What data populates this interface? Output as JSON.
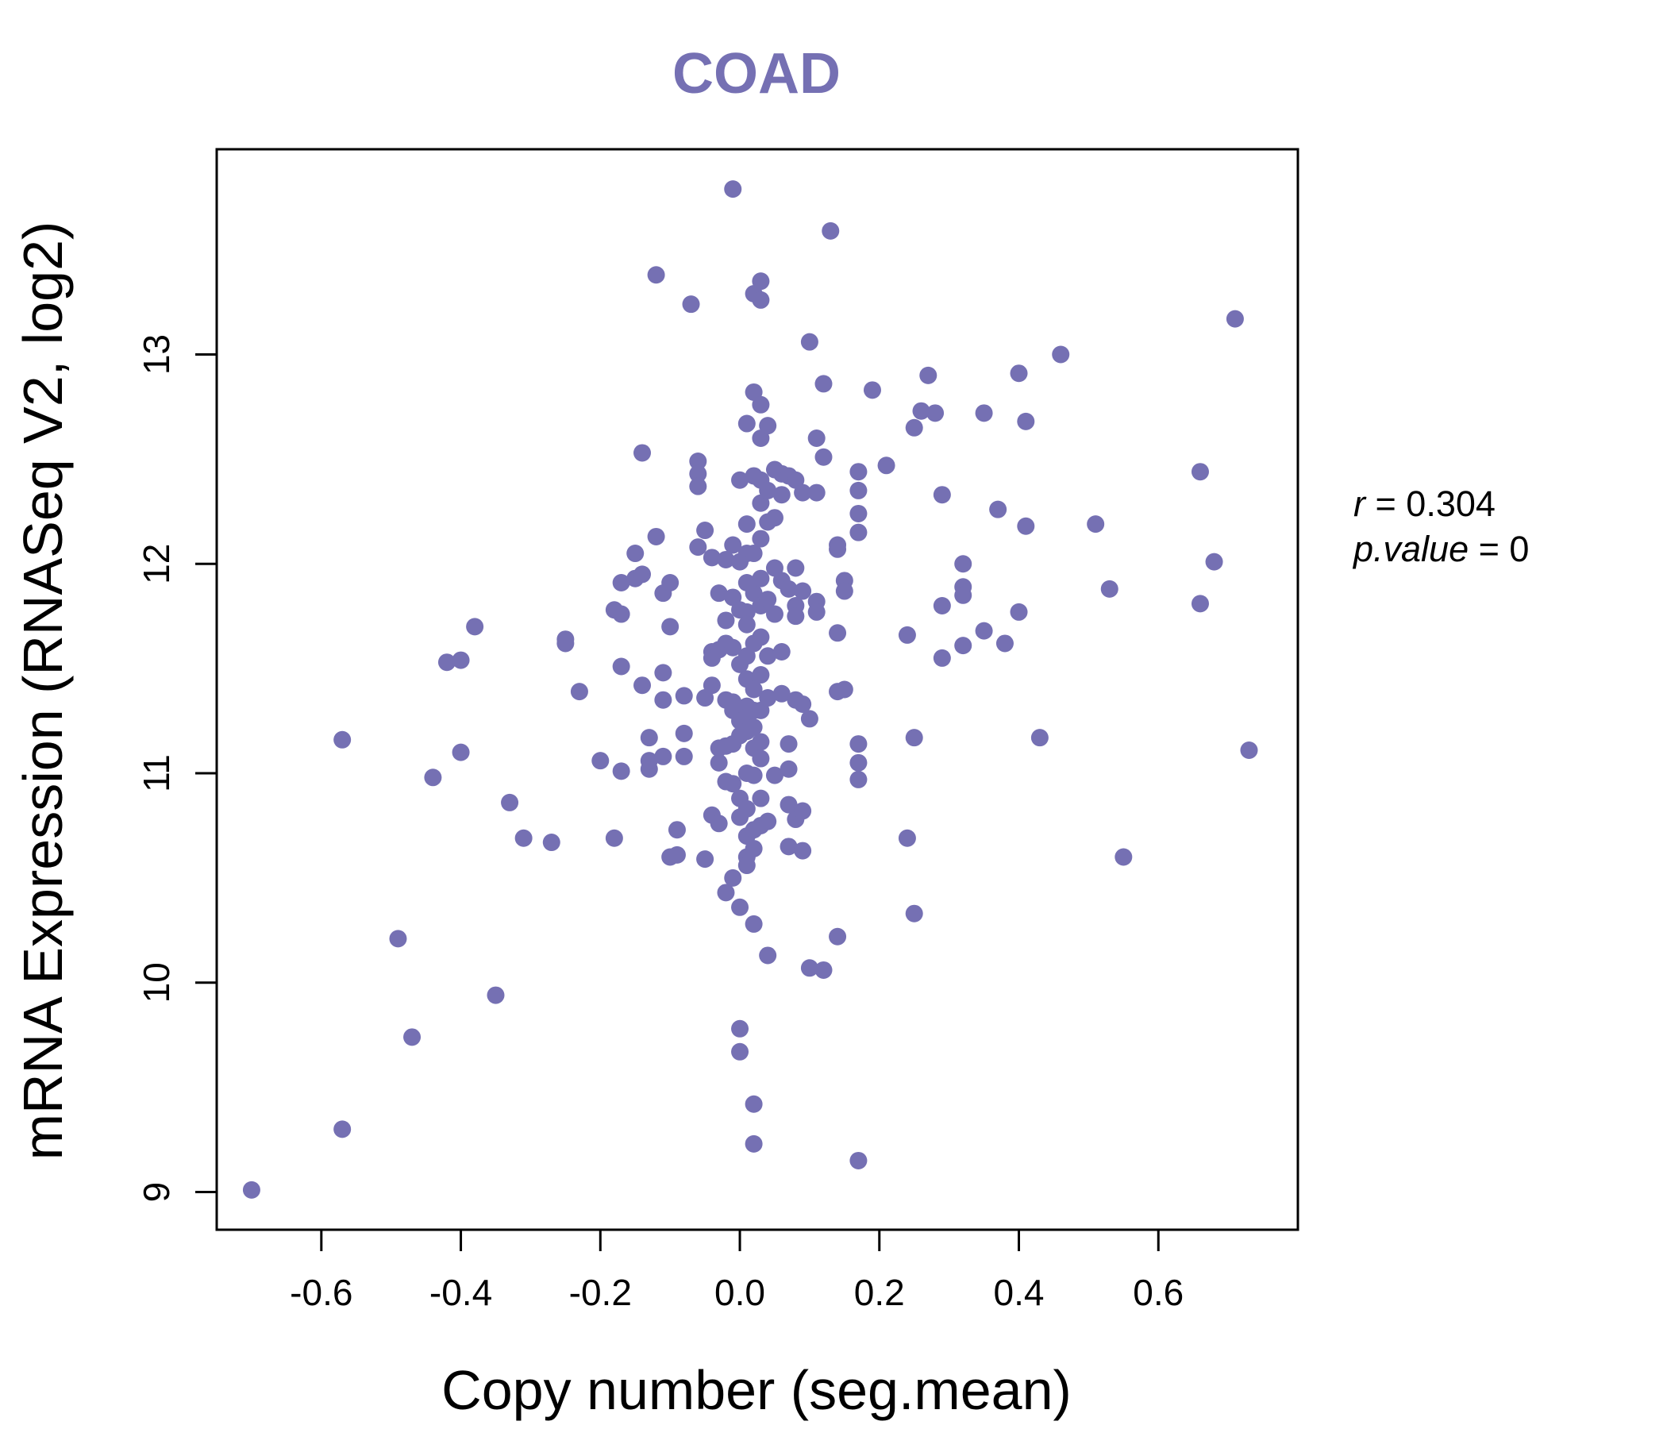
{
  "chart_data": {
    "type": "scatter",
    "title": "COAD",
    "title_color": "#7570b3",
    "point_color": "#7570b3",
    "xlabel": "Copy number (seg.mean)",
    "ylabel": "mRNA Expression (RNASeq V2, log2)",
    "xlim": [
      -0.75,
      0.8
    ],
    "ylim": [
      8.82,
      13.98
    ],
    "x_ticks": [
      "-0.6",
      "-0.4",
      "-0.2",
      "0.0",
      "0.2",
      "0.4",
      "0.6"
    ],
    "x_tick_values": [
      -0.6,
      -0.4,
      -0.2,
      0.0,
      0.2,
      0.4,
      0.6
    ],
    "y_ticks": [
      "9",
      "10",
      "11",
      "12",
      "13"
    ],
    "y_tick_values": [
      9,
      10,
      11,
      12,
      13
    ],
    "grid": false,
    "stats": {
      "r_label": "r",
      "r_value": "0.304",
      "p_label": "p.value",
      "p_value": "0"
    },
    "points": [
      [
        -0.7,
        9.01
      ],
      [
        -0.57,
        9.3
      ],
      [
        -0.57,
        11.16
      ],
      [
        -0.49,
        10.21
      ],
      [
        -0.47,
        9.74
      ],
      [
        -0.44,
        10.98
      ],
      [
        -0.42,
        11.53
      ],
      [
        -0.4,
        11.54
      ],
      [
        -0.4,
        11.1
      ],
      [
        -0.38,
        11.7
      ],
      [
        -0.35,
        9.94
      ],
      [
        -0.33,
        10.86
      ],
      [
        -0.31,
        10.69
      ],
      [
        -0.27,
        10.67
      ],
      [
        -0.25,
        11.64
      ],
      [
        -0.25,
        11.62
      ],
      [
        -0.23,
        11.39
      ],
      [
        -0.2,
        11.06
      ],
      [
        -0.18,
        10.69
      ],
      [
        -0.18,
        11.78
      ],
      [
        -0.17,
        11.91
      ],
      [
        -0.17,
        11.76
      ],
      [
        -0.17,
        11.51
      ],
      [
        -0.17,
        11.01
      ],
      [
        -0.15,
        12.05
      ],
      [
        -0.15,
        11.93
      ],
      [
        -0.14,
        11.95
      ],
      [
        -0.14,
        12.53
      ],
      [
        -0.14,
        11.42
      ],
      [
        -0.13,
        11.17
      ],
      [
        -0.13,
        11.02
      ],
      [
        -0.13,
        11.06
      ],
      [
        -0.12,
        12.13
      ],
      [
        -0.12,
        13.38
      ],
      [
        -0.11,
        11.86
      ],
      [
        -0.11,
        11.35
      ],
      [
        -0.11,
        11.08
      ],
      [
        -0.11,
        11.48
      ],
      [
        -0.1,
        11.91
      ],
      [
        -0.1,
        11.7
      ],
      [
        -0.1,
        10.6
      ],
      [
        -0.09,
        10.73
      ],
      [
        -0.09,
        10.61
      ],
      [
        -0.08,
        11.19
      ],
      [
        -0.08,
        11.08
      ],
      [
        -0.08,
        11.37
      ],
      [
        -0.07,
        13.24
      ],
      [
        -0.06,
        12.49
      ],
      [
        -0.06,
        12.43
      ],
      [
        -0.06,
        12.37
      ],
      [
        -0.06,
        12.08
      ],
      [
        -0.05,
        11.36
      ],
      [
        -0.05,
        10.59
      ],
      [
        -0.05,
        12.16
      ],
      [
        -0.04,
        12.03
      ],
      [
        -0.04,
        11.58
      ],
      [
        -0.04,
        11.55
      ],
      [
        -0.04,
        11.42
      ],
      [
        -0.04,
        10.8
      ],
      [
        -0.03,
        11.86
      ],
      [
        -0.03,
        11.59
      ],
      [
        -0.03,
        11.12
      ],
      [
        -0.03,
        11.05
      ],
      [
        -0.03,
        10.76
      ],
      [
        -0.02,
        12.02
      ],
      [
        -0.02,
        11.73
      ],
      [
        -0.02,
        11.62
      ],
      [
        -0.02,
        11.35
      ],
      [
        -0.02,
        11.13
      ],
      [
        -0.02,
        10.96
      ],
      [
        -0.02,
        10.43
      ],
      [
        -0.01,
        13.79
      ],
      [
        -0.01,
        12.09
      ],
      [
        -0.01,
        11.84
      ],
      [
        -0.01,
        11.6
      ],
      [
        -0.01,
        11.34
      ],
      [
        -0.01,
        11.3
      ],
      [
        -0.01,
        11.14
      ],
      [
        -0.01,
        10.95
      ],
      [
        -0.01,
        10.5
      ],
      [
        0.0,
        12.4
      ],
      [
        0.0,
        12.01
      ],
      [
        0.0,
        11.78
      ],
      [
        0.0,
        11.52
      ],
      [
        0.0,
        11.25
      ],
      [
        0.0,
        11.18
      ],
      [
        0.0,
        10.88
      ],
      [
        0.0,
        10.79
      ],
      [
        0.0,
        10.36
      ],
      [
        0.0,
        9.78
      ],
      [
        0.0,
        9.67
      ],
      [
        0.01,
        12.67
      ],
      [
        0.01,
        12.19
      ],
      [
        0.01,
        12.05
      ],
      [
        0.01,
        11.91
      ],
      [
        0.01,
        11.77
      ],
      [
        0.01,
        11.71
      ],
      [
        0.01,
        11.56
      ],
      [
        0.01,
        11.45
      ],
      [
        0.01,
        11.32
      ],
      [
        0.01,
        11.27
      ],
      [
        0.01,
        11.2
      ],
      [
        0.01,
        11.0
      ],
      [
        0.01,
        10.83
      ],
      [
        0.01,
        10.7
      ],
      [
        0.01,
        10.6
      ],
      [
        0.01,
        10.56
      ],
      [
        0.02,
        13.29
      ],
      [
        0.02,
        12.82
      ],
      [
        0.02,
        12.42
      ],
      [
        0.02,
        12.05
      ],
      [
        0.02,
        11.86
      ],
      [
        0.02,
        11.62
      ],
      [
        0.02,
        11.4
      ],
      [
        0.02,
        11.3
      ],
      [
        0.02,
        11.22
      ],
      [
        0.02,
        11.12
      ],
      [
        0.02,
        10.99
      ],
      [
        0.02,
        10.73
      ],
      [
        0.02,
        10.64
      ],
      [
        0.02,
        10.28
      ],
      [
        0.02,
        9.42
      ],
      [
        0.02,
        9.23
      ],
      [
        0.03,
        13.35
      ],
      [
        0.03,
        13.26
      ],
      [
        0.03,
        12.76
      ],
      [
        0.03,
        12.6
      ],
      [
        0.03,
        12.4
      ],
      [
        0.03,
        12.29
      ],
      [
        0.03,
        12.12
      ],
      [
        0.03,
        11.93
      ],
      [
        0.03,
        11.8
      ],
      [
        0.03,
        11.65
      ],
      [
        0.03,
        11.47
      ],
      [
        0.03,
        11.3
      ],
      [
        0.03,
        11.15
      ],
      [
        0.03,
        11.07
      ],
      [
        0.03,
        10.88
      ],
      [
        0.03,
        10.75
      ],
      [
        0.04,
        12.66
      ],
      [
        0.04,
        12.35
      ],
      [
        0.04,
        12.2
      ],
      [
        0.04,
        11.83
      ],
      [
        0.04,
        11.56
      ],
      [
        0.04,
        11.36
      ],
      [
        0.04,
        10.77
      ],
      [
        0.04,
        10.13
      ],
      [
        0.05,
        12.45
      ],
      [
        0.05,
        12.22
      ],
      [
        0.05,
        11.98
      ],
      [
        0.05,
        11.76
      ],
      [
        0.05,
        10.99
      ],
      [
        0.06,
        12.43
      ],
      [
        0.06,
        12.33
      ],
      [
        0.06,
        11.92
      ],
      [
        0.06,
        11.58
      ],
      [
        0.06,
        11.38
      ],
      [
        0.07,
        12.42
      ],
      [
        0.07,
        11.88
      ],
      [
        0.07,
        10.85
      ],
      [
        0.07,
        10.65
      ],
      [
        0.07,
        11.14
      ],
      [
        0.07,
        11.02
      ],
      [
        0.08,
        12.4
      ],
      [
        0.08,
        11.98
      ],
      [
        0.08,
        11.8
      ],
      [
        0.08,
        11.75
      ],
      [
        0.08,
        11.35
      ],
      [
        0.08,
        10.78
      ],
      [
        0.09,
        12.34
      ],
      [
        0.09,
        11.87
      ],
      [
        0.09,
        11.33
      ],
      [
        0.09,
        10.82
      ],
      [
        0.09,
        10.63
      ],
      [
        0.1,
        13.06
      ],
      [
        0.1,
        11.26
      ],
      [
        0.1,
        10.07
      ],
      [
        0.11,
        12.6
      ],
      [
        0.11,
        12.34
      ],
      [
        0.11,
        11.82
      ],
      [
        0.11,
        11.77
      ],
      [
        0.12,
        12.86
      ],
      [
        0.12,
        12.51
      ],
      [
        0.12,
        10.06
      ],
      [
        0.13,
        13.59
      ],
      [
        0.14,
        12.09
      ],
      [
        0.14,
        12.07
      ],
      [
        0.14,
        11.67
      ],
      [
        0.14,
        11.39
      ],
      [
        0.14,
        10.22
      ],
      [
        0.15,
        11.92
      ],
      [
        0.15,
        11.87
      ],
      [
        0.15,
        11.4
      ],
      [
        0.17,
        12.15
      ],
      [
        0.17,
        12.24
      ],
      [
        0.17,
        12.35
      ],
      [
        0.17,
        12.44
      ],
      [
        0.17,
        11.14
      ],
      [
        0.17,
        11.05
      ],
      [
        0.17,
        10.97
      ],
      [
        0.17,
        9.15
      ],
      [
        0.19,
        12.83
      ],
      [
        0.21,
        12.47
      ],
      [
        0.24,
        11.66
      ],
      [
        0.24,
        10.69
      ],
      [
        0.25,
        10.33
      ],
      [
        0.25,
        11.17
      ],
      [
        0.25,
        12.65
      ],
      [
        0.26,
        12.73
      ],
      [
        0.27,
        12.9
      ],
      [
        0.28,
        12.72
      ],
      [
        0.29,
        12.33
      ],
      [
        0.29,
        11.8
      ],
      [
        0.29,
        11.55
      ],
      [
        0.32,
        12.0
      ],
      [
        0.32,
        11.89
      ],
      [
        0.32,
        11.85
      ],
      [
        0.32,
        11.61
      ],
      [
        0.35,
        11.68
      ],
      [
        0.35,
        12.72
      ],
      [
        0.37,
        12.26
      ],
      [
        0.38,
        11.62
      ],
      [
        0.4,
        11.77
      ],
      [
        0.4,
        12.91
      ],
      [
        0.41,
        12.18
      ],
      [
        0.41,
        12.68
      ],
      [
        0.43,
        11.17
      ],
      [
        0.46,
        13.0
      ],
      [
        0.51,
        12.19
      ],
      [
        0.53,
        11.88
      ],
      [
        0.55,
        10.6
      ],
      [
        0.66,
        12.44
      ],
      [
        0.66,
        11.81
      ],
      [
        0.68,
        12.01
      ],
      [
        0.71,
        13.17
      ],
      [
        0.73,
        11.11
      ]
    ]
  }
}
